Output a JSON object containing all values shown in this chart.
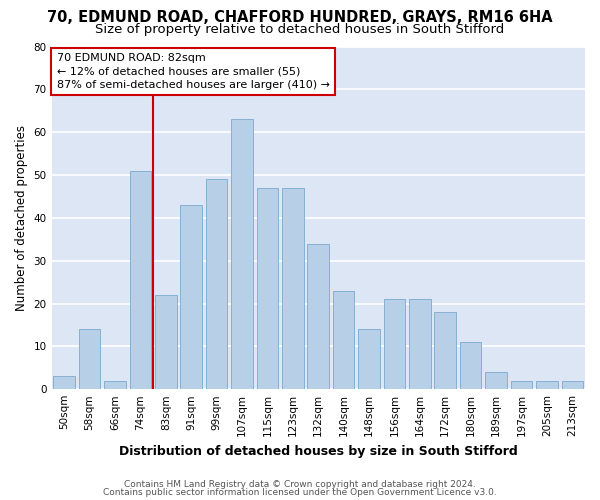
{
  "title1": "70, EDMUND ROAD, CHAFFORD HUNDRED, GRAYS, RM16 6HA",
  "title2": "Size of property relative to detached houses in South Stifford",
  "xlabel": "Distribution of detached houses by size in South Stifford",
  "ylabel": "Number of detached properties",
  "categories": [
    "50sqm",
    "58sqm",
    "66sqm",
    "74sqm",
    "83sqm",
    "91sqm",
    "99sqm",
    "107sqm",
    "115sqm",
    "123sqm",
    "132sqm",
    "140sqm",
    "148sqm",
    "156sqm",
    "164sqm",
    "172sqm",
    "180sqm",
    "189sqm",
    "197sqm",
    "205sqm",
    "213sqm"
  ],
  "values": [
    3,
    14,
    2,
    51,
    22,
    43,
    49,
    63,
    47,
    47,
    34,
    23,
    14,
    21,
    21,
    18,
    11,
    4,
    2,
    2,
    2
  ],
  "bar_color": "#b8cfe8",
  "bar_edge_color": "#7aaad0",
  "vline_index": 4,
  "vline_color": "#cc0000",
  "annotation_line1": "70 EDMUND ROAD: 82sqm",
  "annotation_line2": "← 12% of detached houses are smaller (55)",
  "annotation_line3": "87% of semi-detached houses are larger (410) →",
  "annotation_box_edgecolor": "#cc0000",
  "ylim": [
    0,
    80
  ],
  "yticks": [
    0,
    10,
    20,
    30,
    40,
    50,
    60,
    70,
    80
  ],
  "background_color": "#dce6f5",
  "grid_color": "#ffffff",
  "footer1": "Contains HM Land Registry data © Crown copyright and database right 2024.",
  "footer2": "Contains public sector information licensed under the Open Government Licence v3.0.",
  "title1_fontsize": 10.5,
  "title2_fontsize": 9.5,
  "xlabel_fontsize": 9,
  "ylabel_fontsize": 8.5,
  "tick_fontsize": 7.5,
  "annotation_fontsize": 8,
  "footer_fontsize": 6.5
}
